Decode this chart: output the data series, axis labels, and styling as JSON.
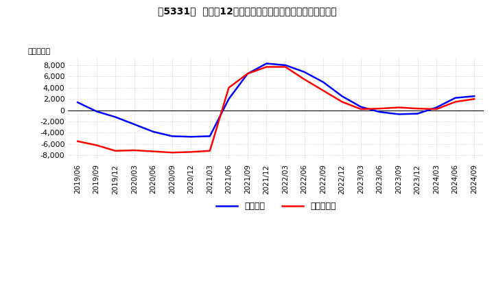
{
  "title": "［5331］  利益だ12か月移動合計の対前年同期増減額の推移",
  "ylabel": "（百万円）",
  "ylim": [
    -9000,
    9500
  ],
  "yticks": [
    -8000,
    -6000,
    -4000,
    -2000,
    0,
    2000,
    4000,
    6000,
    8000
  ],
  "legend_labels": [
    "経常利益",
    "当期純利益"
  ],
  "legend_colors": [
    "#0000ff",
    "#ff0000"
  ],
  "x_labels": [
    "2019/06",
    "2019/09",
    "2019/12",
    "2020/03",
    "2020/06",
    "2020/09",
    "2020/12",
    "2021/03",
    "2021/06",
    "2021/09",
    "2021/12",
    "2022/03",
    "2022/06",
    "2022/09",
    "2022/12",
    "2023/03",
    "2023/06",
    "2023/09",
    "2023/12",
    "2024/03",
    "2024/06",
    "2024/09"
  ],
  "ordinary_profit": [
    1400,
    -200,
    -1200,
    -2500,
    -3800,
    -4600,
    -4700,
    -4600,
    2000,
    6500,
    8300,
    8000,
    6800,
    5000,
    2500,
    600,
    -300,
    -700,
    -600,
    500,
    2200,
    2500
  ],
  "net_profit": [
    -5500,
    -6200,
    -7200,
    -7100,
    -7300,
    -7500,
    -7400,
    -7200,
    4000,
    6500,
    7700,
    7700,
    5500,
    3500,
    1500,
    200,
    300,
    500,
    300,
    200,
    1500,
    2000
  ],
  "line_width": 1.8,
  "background_color": "#ffffff",
  "grid_color": "#bbbbbb",
  "ordinary_color": "#0000ff",
  "net_color": "#ff0000"
}
